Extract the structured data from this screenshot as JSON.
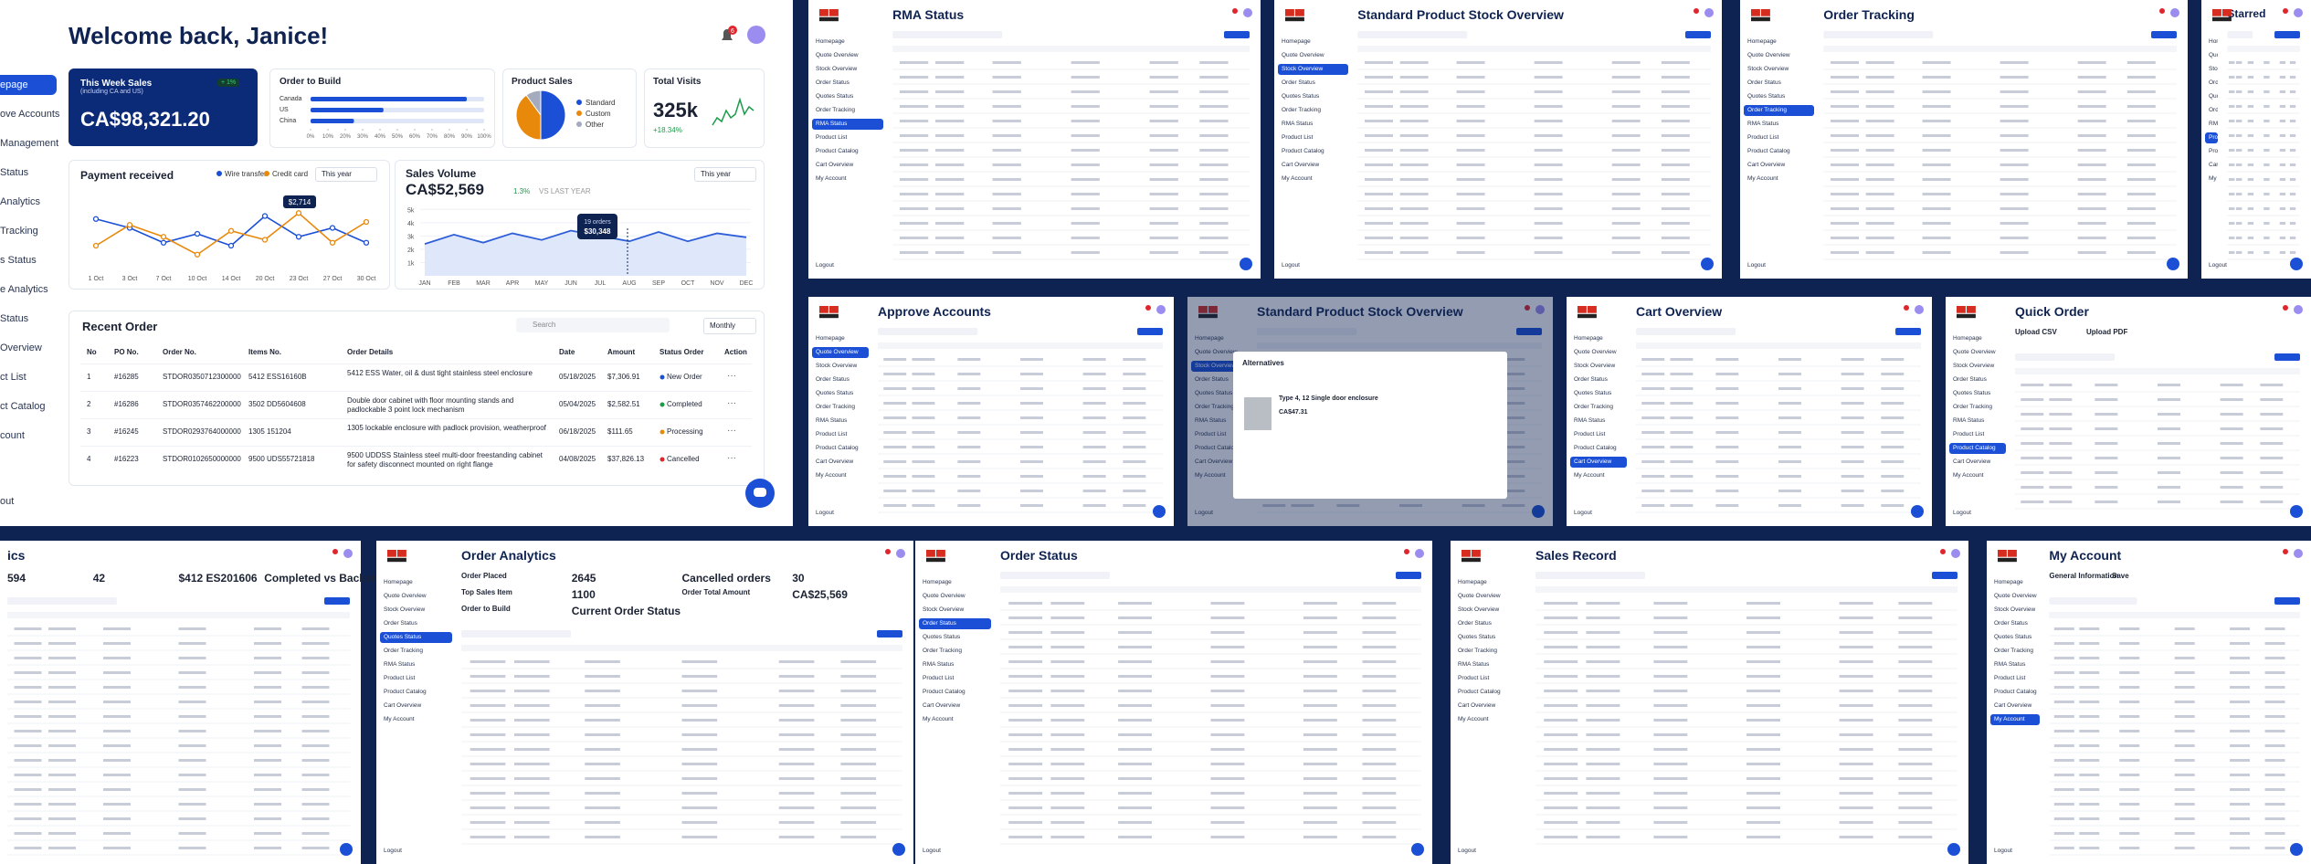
{
  "dashboard": {
    "sidebar": [
      "epage",
      "ove Accounts",
      "Management",
      "Status",
      "Analytics",
      "Tracking",
      "s Status",
      "e Analytics",
      "Status",
      "Overview",
      "ct List",
      "ct Catalog",
      "count",
      "out"
    ],
    "title": "Welcome back, Janice!",
    "notifications": "6",
    "week_sales": {
      "title": "This Week Sales",
      "subtitle": "(including CA and US)",
      "value": "CA$98,321.20",
      "change": "+ 1%"
    },
    "order_to_build": {
      "title": "Order to Build",
      "type": "bar",
      "categories": [
        "Canada",
        "US",
        "China"
      ],
      "values": [
        90,
        42,
        25
      ],
      "color": "#1a4fd6",
      "xlim": [
        0,
        100
      ],
      "xticks": [
        {
          "value": 0,
          "label": "0%"
        },
        {
          "value": 10,
          "label": "10%"
        },
        {
          "value": 20,
          "label": "20%"
        },
        {
          "value": 30,
          "label": "30%"
        },
        {
          "value": 40,
          "label": "40%"
        },
        {
          "value": 50,
          "label": "50%"
        },
        {
          "value": 60,
          "label": "60%"
        },
        {
          "value": 70,
          "label": "70%"
        },
        {
          "value": 80,
          "label": "80%"
        },
        {
          "value": 90,
          "label": "90%"
        },
        {
          "value": 100,
          "label": "100%"
        }
      ]
    },
    "product_sales": {
      "title": "Product Sales",
      "type": "pie",
      "categories": [
        "Standard",
        "Custom",
        "Other"
      ],
      "values": [
        50,
        40,
        10
      ],
      "colors": [
        "#1a4fd6",
        "#e8890c",
        "#a3abbd"
      ]
    },
    "total_visits": {
      "title": "Total Visits",
      "value": "325k",
      "change": "+18.34%",
      "type": "line",
      "color": "#1d9a4a",
      "values": [
        2,
        4,
        3,
        6,
        4,
        5,
        9,
        5,
        7,
        6
      ]
    },
    "payment": {
      "title": "Payment received",
      "period": "This year",
      "type": "line",
      "categories": [
        "1 Oct",
        "3 Oct",
        "7 Oct",
        "10 Oct",
        "14 Oct",
        "20 Oct",
        "23 Oct",
        "27 Oct",
        "30 Oct"
      ],
      "series": [
        {
          "name": "Wire transfer",
          "color": "#1a4fd6",
          "values": [
            85,
            70,
            45,
            60,
            40,
            90,
            55,
            70,
            45
          ]
        },
        {
          "name": "Credit card",
          "color": "#e8890c",
          "values": [
            40,
            75,
            55,
            25,
            65,
            50,
            95,
            45,
            80
          ]
        }
      ],
      "tooltip": "$2,714"
    },
    "sales_volume": {
      "title": "Sales Volume",
      "value": "CA$52,569",
      "change": "1.3%",
      "compare": "VS LAST YEAR",
      "period": "This year",
      "type": "area",
      "color": "#2f5fd8",
      "categories": [
        "JAN",
        "FEB",
        "MAR",
        "APR",
        "MAY",
        "JUN",
        "JUL",
        "AUG",
        "SEP",
        "OCT",
        "NOV",
        "DEC"
      ],
      "values": [
        2.4,
        3.1,
        2.5,
        3.2,
        2.7,
        3.4,
        3.0,
        2.6,
        3.3,
        2.6,
        3.2,
        2.9
      ],
      "ylim": [
        0,
        5.5
      ],
      "yticks": [
        {
          "value": 1,
          "label": "1k"
        },
        {
          "value": 2,
          "label": "2k"
        },
        {
          "value": 3,
          "label": "3k"
        },
        {
          "value": 4,
          "label": "4k"
        },
        {
          "value": 5,
          "label": "5k"
        }
      ],
      "tooltip_orders": "19 orders",
      "tooltip_amount": "$30,348"
    },
    "recent_order": {
      "title": "Recent Order",
      "search": "Search",
      "period": "Monthly",
      "columns": [
        "No",
        "PO No.",
        "Order No.",
        "Items No.",
        "Order Details",
        "Date",
        "Amount",
        "Status Order",
        "Action"
      ],
      "rows": [
        [
          "1",
          "#16285",
          "STDOR0350712300000",
          "5412 ESS16160B",
          "5412 ESS Water, oil & dust tight stainless steel enclosure",
          "05/18/2025",
          "$7,306.91",
          "New Order"
        ],
        [
          "2",
          "#16286",
          "STDOR0357462200000",
          "3502 DD5604608",
          "Double door cabinet with floor mounting stands and padlockable 3 point lock mechanism",
          "05/04/2025",
          "$2,582.51",
          "Completed"
        ],
        [
          "3",
          "#16245",
          "STDOR0293764000000",
          "1305 151204",
          "1305 lockable enclosure with padlock provision, weatherproof",
          "06/18/2025",
          "$111.65",
          "Processing"
        ],
        [
          "4",
          "#16223",
          "STDOR0102650000000",
          "9500 UDS55721818",
          "9500 UDDSS Stainless steel multi-door freestanding cabinet for safety disconnect mounted on right flange",
          "04/08/2025",
          "$37,826.13",
          "Cancelled"
        ]
      ]
    }
  },
  "sidebar_menu": [
    "Homepage",
    "Quote Overview",
    "Stock Overview",
    "Order Status",
    "Quotes Status",
    "Order Tracking",
    "RMA Status",
    "Product List",
    "Product Catalog",
    "Cart Overview",
    "My Account"
  ],
  "logout": "Logout",
  "panels": [
    {
      "title": "RMA Status",
      "texts": []
    },
    {
      "title": "Standard Product Stock Overview",
      "texts": []
    },
    {
      "title": "Order Tracking",
      "texts": []
    },
    {
      "title": "Starred",
      "texts": []
    },
    {
      "title": "Approve Accounts",
      "texts": []
    },
    {
      "title": "Standard Product Stock Overview",
      "texts": [
        "Alternatives",
        "Type 4, 12 Single door enclosure",
        "CA$47.31"
      ]
    },
    {
      "title": "Cart Overview",
      "texts": []
    },
    {
      "title": "Quick Order",
      "texts": [
        "Upload CSV",
        "Upload PDF"
      ]
    },
    {
      "title": "ics",
      "texts": [
        "594",
        "42",
        "$412 ES201606",
        "Completed vs Backorder Trends"
      ]
    },
    {
      "title": "Order Analytics",
      "texts": [
        "Order Placed",
        "2645",
        "Cancelled orders",
        "30",
        "Top Sales Item",
        "1100",
        "Order Total Amount",
        "CA$25,569",
        "Order to Build",
        "Current Order Status"
      ]
    },
    {
      "title": "Order Status",
      "texts": []
    },
    {
      "title": "Sales Record",
      "texts": []
    },
    {
      "title": "My Account",
      "texts": [
        "General Information",
        "Save"
      ]
    }
  ]
}
